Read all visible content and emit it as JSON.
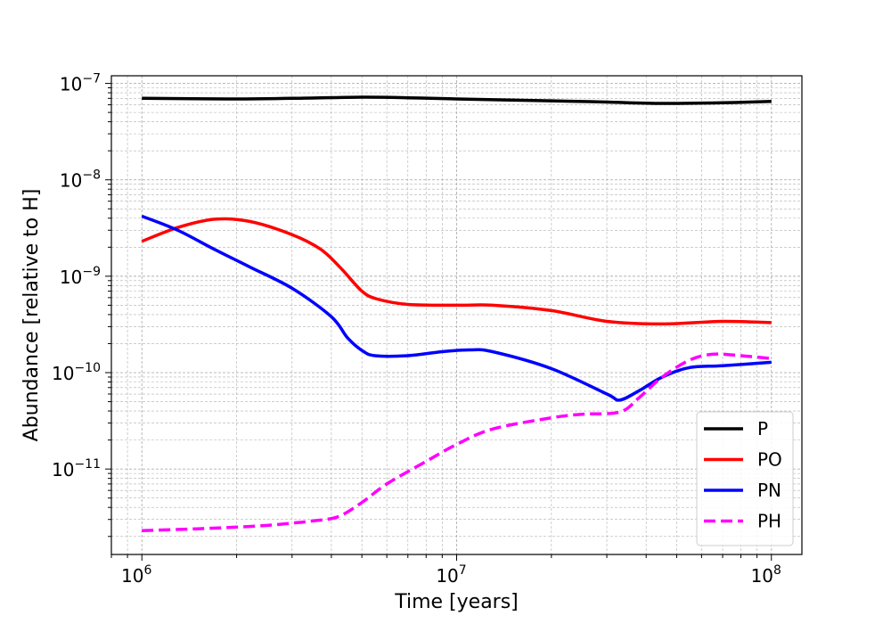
{
  "chart_data": {
    "type": "line",
    "title": "",
    "xlabel": "Time [years]",
    "ylabel": "Abundance [relative to H]",
    "xscale": "log",
    "yscale": "log",
    "xlim": [
      800000,
      125000000
    ],
    "ylim": [
      1.3e-12,
      1.2e-07
    ],
    "grid": true,
    "legend_position": "bottom-right",
    "x_ticks": [
      {
        "value": 1000000,
        "base": "10",
        "exp": "6"
      },
      {
        "value": 10000000,
        "base": "10",
        "exp": "7"
      },
      {
        "value": 100000000,
        "base": "10",
        "exp": "8"
      }
    ],
    "y_ticks": [
      {
        "value": 1e-11,
        "base": "10",
        "exp": "−11"
      },
      {
        "value": 1e-10,
        "base": "10",
        "exp": "−10"
      },
      {
        "value": 1e-09,
        "base": "10",
        "exp": "−9"
      },
      {
        "value": 1e-08,
        "base": "10",
        "exp": "−8"
      },
      {
        "value": 1e-07,
        "base": "10",
        "exp": "−7"
      }
    ],
    "series": [
      {
        "name": "P",
        "color": "#000000",
        "dash": "solid",
        "x": [
          1000000,
          2000000,
          3000000,
          5000000,
          7000000,
          10000000,
          20000000,
          30000000,
          45000000,
          70000000,
          100000000
        ],
        "y": [
          7e-08,
          6.9e-08,
          7e-08,
          7.2e-08,
          7.1e-08,
          6.9e-08,
          6.6e-08,
          6.4e-08,
          6.2e-08,
          6.3e-08,
          6.5e-08
        ]
      },
      {
        "name": "PO",
        "color": "#ff0000",
        "dash": "solid",
        "x": [
          1000000,
          1300000,
          1700000,
          2200000,
          3000000,
          3700000,
          4300000,
          5000000,
          5600000,
          7000000,
          10000000,
          13000000,
          20000000,
          30000000,
          45000000,
          70000000,
          100000000
        ],
        "y": [
          2.3e-09,
          3.2e-09,
          3.9e-09,
          3.7e-09,
          2.7e-09,
          1.9e-09,
          1.2e-09,
          7e-10,
          5.8e-10,
          5.1e-10,
          5e-10,
          5e-10,
          4.4e-10,
          3.4e-10,
          3.2e-10,
          3.4e-10,
          3.3e-10
        ]
      },
      {
        "name": "PN",
        "color": "#0000ff",
        "dash": "solid",
        "x": [
          1000000,
          1300000,
          1700000,
          2200000,
          3000000,
          4000000,
          4500000,
          5000000,
          5500000,
          7000000,
          9000000,
          11000000,
          13000000,
          20000000,
          30000000,
          33000000,
          38000000,
          45000000,
          55000000,
          70000000,
          100000000
        ],
        "y": [
          4.2e-09,
          3e-09,
          1.9e-09,
          1.25e-09,
          7.5e-10,
          3.8e-10,
          2.3e-10,
          1.7e-10,
          1.5e-10,
          1.5e-10,
          1.65e-10,
          1.72e-10,
          1.65e-10,
          1.1e-10,
          6e-11,
          5.2e-11,
          6.5e-11,
          9e-11,
          1.13e-10,
          1.18e-10,
          1.28e-10
        ]
      },
      {
        "name": "PH",
        "color": "#ff00ff",
        "dash": "dashed",
        "x": [
          1000000,
          1500000,
          2000000,
          2500000,
          3000000,
          3500000,
          4200000,
          5000000,
          6000000,
          8000000,
          10000000,
          13000000,
          20000000,
          25000000,
          33000000,
          38000000,
          45000000,
          55000000,
          65000000,
          80000000,
          100000000
        ],
        "y": [
          2.3e-12,
          2.4e-12,
          2.5e-12,
          2.6e-12,
          2.75e-12,
          2.9e-12,
          3.2e-12,
          4.5e-12,
          7e-12,
          1.2e-11,
          1.8e-11,
          2.6e-11,
          3.4e-11,
          3.7e-11,
          3.9e-11,
          5.5e-11,
          9e-11,
          1.35e-10,
          1.55e-10,
          1.5e-10,
          1.4e-10
        ]
      }
    ]
  }
}
